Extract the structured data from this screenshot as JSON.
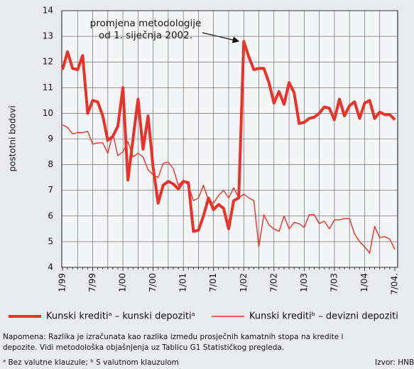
{
  "chart_data": {
    "type": "line",
    "ylabel": "postotni bodovi",
    "annotation": [
      "promjena metodologije",
      "od 1. siječnja 2002."
    ],
    "categories": [
      "1/99",
      null,
      null,
      null,
      null,
      null,
      "7/99",
      null,
      null,
      null,
      null,
      null,
      "1/00",
      null,
      null,
      null,
      null,
      null,
      "7/00",
      null,
      null,
      null,
      null,
      null,
      "1/01",
      null,
      null,
      null,
      null,
      null,
      "7/01",
      null,
      null,
      null,
      null,
      null,
      "1/02",
      null,
      null,
      null,
      null,
      null,
      "7/02",
      null,
      null,
      null,
      null,
      null,
      "1/03",
      null,
      null,
      null,
      null,
      null,
      "7/03",
      null,
      null,
      null,
      null,
      null,
      "1/04",
      null,
      null,
      null,
      null,
      null,
      "7/04."
    ],
    "series": [
      {
        "name": "Kunski kreditiᵃ – kunski depozitiᵃ",
        "color": "#e8322a",
        "width": 4,
        "values": [
          11.7,
          12.4,
          11.75,
          11.7,
          12.25,
          10.0,
          10.5,
          10.45,
          9.9,
          8.95,
          9.1,
          9.5,
          11.0,
          7.4,
          9.0,
          10.55,
          8.6,
          9.9,
          7.9,
          6.5,
          7.2,
          7.35,
          7.25,
          7.05,
          7.35,
          7.3,
          5.4,
          5.45,
          6.0,
          6.7,
          6.25,
          6.45,
          6.3,
          5.5,
          6.6,
          6.7,
          12.8,
          12.2,
          11.7,
          11.75,
          11.75,
          11.2,
          10.4,
          10.85,
          10.35,
          11.2,
          10.8,
          9.6,
          9.65,
          9.8,
          9.85,
          10.0,
          10.25,
          10.2,
          9.75,
          10.55,
          9.9,
          10.3,
          10.45,
          9.8,
          10.4,
          10.5,
          9.8,
          10.05,
          9.95,
          9.95,
          9.75
        ]
      },
      {
        "name": "Kunski kreditiᵇ – devizni depoziti",
        "color": "#e8322a",
        "width": 1.4,
        "values": [
          9.55,
          9.45,
          9.2,
          9.25,
          9.25,
          9.3,
          8.8,
          8.85,
          8.85,
          8.45,
          9.2,
          8.35,
          8.5,
          8.9,
          8.3,
          8.45,
          8.3,
          7.8,
          7.6,
          7.5,
          8.05,
          8.1,
          7.85,
          7.2,
          7.4,
          7.2,
          6.6,
          6.7,
          7.2,
          6.6,
          6.5,
          6.8,
          7.0,
          6.7,
          7.1,
          6.7,
          6.85,
          6.7,
          6.6,
          4.8,
          6.05,
          5.65,
          5.5,
          5.4,
          6.0,
          5.5,
          5.75,
          5.7,
          5.55,
          6.05,
          6.05,
          5.7,
          5.8,
          5.5,
          5.85,
          5.85,
          5.9,
          5.9,
          5.3,
          5.0,
          4.8,
          4.55,
          5.6,
          5.15,
          5.2,
          5.1,
          4.7
        ]
      }
    ],
    "ylim": [
      4,
      14
    ],
    "yticks": [
      4,
      5,
      6,
      7,
      8,
      9,
      10,
      11,
      12,
      13,
      14
    ],
    "grid": true,
    "note": [
      "Napomena: Razlika je izračunata kao razlika između prosječnih kamatnih stopa na kredite i",
      "depozite. Vidi metodološka objašnjenja uz Tablicu G1 Statističkog pregleda."
    ],
    "footnote": "ᵃ Bez valutne klauzule; ᵇ S valutnom klauzulom",
    "source": "Izvor: HNB"
  }
}
